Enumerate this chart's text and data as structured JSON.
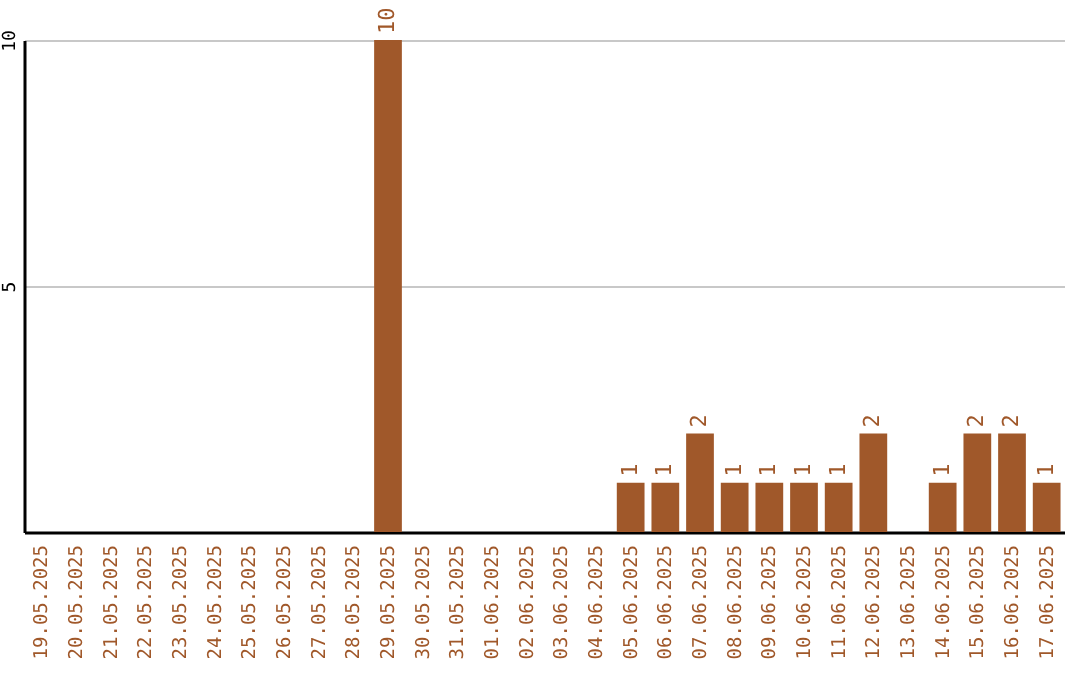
{
  "chart_data": {
    "type": "bar",
    "categories": [
      "19.05.2025",
      "20.05.2025",
      "21.05.2025",
      "22.05.2025",
      "23.05.2025",
      "24.05.2025",
      "25.05.2025",
      "26.05.2025",
      "27.05.2025",
      "28.05.2025",
      "29.05.2025",
      "30.05.2025",
      "31.05.2025",
      "01.06.2025",
      "02.06.2025",
      "03.06.2025",
      "04.06.2025",
      "05.06.2025",
      "06.06.2025",
      "07.06.2025",
      "08.06.2025",
      "09.06.2025",
      "10.06.2025",
      "11.06.2025",
      "12.06.2025",
      "13.06.2025",
      "14.06.2025",
      "15.06.2025",
      "16.06.2025",
      "17.06.2025"
    ],
    "values": [
      0,
      0,
      0,
      0,
      0,
      0,
      0,
      0,
      0,
      0,
      10,
      0,
      0,
      0,
      0,
      0,
      0,
      1,
      1,
      2,
      1,
      1,
      1,
      1,
      2,
      0,
      1,
      2,
      2,
      1
    ],
    "value_labels": [
      null,
      null,
      null,
      null,
      null,
      null,
      null,
      null,
      null,
      null,
      "10",
      null,
      null,
      null,
      null,
      null,
      null,
      "1",
      "1",
      "2",
      "1",
      "1",
      "1",
      "1",
      "2",
      null,
      "1",
      "2",
      "2",
      "1"
    ],
    "color": "#a0582a",
    "ylim": [
      0,
      10
    ],
    "yticks": [
      5,
      10
    ],
    "grid": "y"
  }
}
